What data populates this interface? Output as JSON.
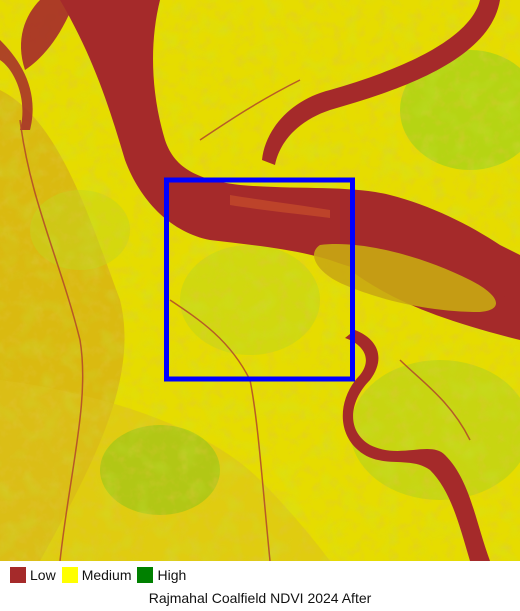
{
  "map": {
    "title": "Rajmahal Coalfield NDVI 2024 After",
    "colors": {
      "low": "#a52a2a",
      "medium": "#ffff00",
      "high": "#008000",
      "highlight_box": "#0000ff"
    }
  },
  "legend": {
    "items": [
      {
        "label": "Low",
        "color": "#a52a2a"
      },
      {
        "label": "Medium",
        "color": "#ffff00"
      },
      {
        "label": "High",
        "color": "#008000"
      }
    ]
  }
}
